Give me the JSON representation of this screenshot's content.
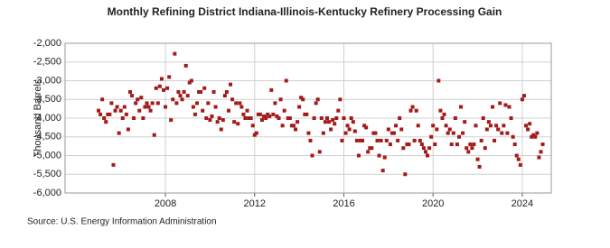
{
  "chart_data": {
    "type": "scatter",
    "title": "Monthly Refining District Indiana-Illinois-Kentucky Refinery Processing Gain",
    "y_label": "Thousand Barrels",
    "source": "Source: U.S. Energy Information Administration",
    "color": "#a31a1a",
    "grid": true,
    "xlim": [
      2003.5,
      2025.3
    ],
    "xticks": [
      2008,
      2012,
      2016,
      2020,
      2024
    ],
    "ylim": [
      -6000,
      -2000
    ],
    "yticks": [
      {
        "value": -6000,
        "label": "-6,000"
      },
      {
        "value": -5500,
        "label": "-5,500"
      },
      {
        "value": -5000,
        "label": "-5,000"
      },
      {
        "value": -4500,
        "label": "-4,500"
      },
      {
        "value": -4000,
        "label": "-4,000"
      },
      {
        "value": -3500,
        "label": "-3,500"
      },
      {
        "value": -3000,
        "label": "-3,000"
      },
      {
        "value": -2500,
        "label": "-2,500"
      },
      {
        "value": -2000,
        "label": "-2,000"
      }
    ],
    "x": [
      2005,
      2005.083,
      2005.167,
      2005.25,
      2005.333,
      2005.417,
      2005.5,
      2005.583,
      2005.667,
      2005.75,
      2005.833,
      2005.917,
      2006,
      2006.083,
      2006.167,
      2006.25,
      2006.333,
      2006.417,
      2006.5,
      2006.583,
      2006.667,
      2006.75,
      2006.833,
      2006.917,
      2007,
      2007.083,
      2007.167,
      2007.25,
      2007.333,
      2007.417,
      2007.5,
      2007.583,
      2007.667,
      2007.75,
      2007.833,
      2007.917,
      2008,
      2008.083,
      2008.167,
      2008.25,
      2008.333,
      2008.417,
      2008.5,
      2008.583,
      2008.667,
      2008.75,
      2008.833,
      2008.917,
      2009,
      2009.083,
      2009.167,
      2009.25,
      2009.333,
      2009.417,
      2009.5,
      2009.583,
      2009.667,
      2009.75,
      2009.833,
      2009.917,
      2010,
      2010.083,
      2010.167,
      2010.25,
      2010.333,
      2010.417,
      2010.5,
      2010.583,
      2010.667,
      2010.75,
      2010.833,
      2010.917,
      2011,
      2011.083,
      2011.167,
      2011.25,
      2011.333,
      2011.417,
      2011.5,
      2011.583,
      2011.667,
      2011.75,
      2011.833,
      2011.917,
      2012,
      2012.083,
      2012.167,
      2012.25,
      2012.333,
      2012.417,
      2012.5,
      2012.583,
      2012.667,
      2012.75,
      2012.833,
      2012.917,
      2013,
      2013.083,
      2013.167,
      2013.25,
      2013.333,
      2013.417,
      2013.5,
      2013.583,
      2013.667,
      2013.75,
      2013.833,
      2013.917,
      2014,
      2014.083,
      2014.167,
      2014.25,
      2014.333,
      2014.417,
      2014.5,
      2014.583,
      2014.667,
      2014.75,
      2014.833,
      2014.917,
      2015,
      2015.083,
      2015.167,
      2015.25,
      2015.333,
      2015.417,
      2015.5,
      2015.583,
      2015.667,
      2015.75,
      2015.833,
      2015.917,
      2016,
      2016.083,
      2016.167,
      2016.25,
      2016.333,
      2016.417,
      2016.5,
      2016.583,
      2016.667,
      2016.75,
      2016.833,
      2016.917,
      2017,
      2017.083,
      2017.167,
      2017.25,
      2017.333,
      2017.417,
      2017.5,
      2017.583,
      2017.667,
      2017.75,
      2017.833,
      2017.917,
      2018,
      2018.083,
      2018.167,
      2018.25,
      2018.333,
      2018.417,
      2018.5,
      2018.583,
      2018.667,
      2018.75,
      2018.833,
      2018.917,
      2019,
      2019.083,
      2019.167,
      2019.25,
      2019.333,
      2019.417,
      2019.5,
      2019.583,
      2019.667,
      2019.75,
      2019.833,
      2019.917,
      2020,
      2020.083,
      2020.167,
      2020.25,
      2020.333,
      2020.417,
      2020.5,
      2020.583,
      2020.667,
      2020.75,
      2020.833,
      2020.917,
      2021,
      2021.083,
      2021.167,
      2021.25,
      2021.333,
      2021.417,
      2021.5,
      2021.583,
      2021.667,
      2021.75,
      2021.833,
      2021.917,
      2022,
      2022.083,
      2022.167,
      2022.25,
      2022.333,
      2022.417,
      2022.5,
      2022.583,
      2022.667,
      2022.75,
      2022.833,
      2022.917,
      2023,
      2023.083,
      2023.167,
      2023.25,
      2023.333,
      2023.417,
      2023.5,
      2023.583,
      2023.667,
      2023.75,
      2023.833,
      2023.917,
      2024,
      2024.083,
      2024.167,
      2024.25,
      2024.333,
      2024.417,
      2024.5,
      2024.583,
      2024.667,
      2024.75,
      2024.833,
      2024.917
    ],
    "values": [
      -3800,
      -3900,
      -3500,
      -4000,
      -4100,
      -3900,
      -3900,
      -3600,
      -5250,
      -3800,
      -3700,
      -4400,
      -3800,
      -4000,
      -3700,
      -3900,
      -4300,
      -3300,
      -3400,
      -4000,
      -3600,
      -3500,
      -3800,
      -3450,
      -4000,
      -3700,
      -3600,
      -3700,
      -3800,
      -3600,
      -4450,
      -3200,
      -3600,
      -3150,
      -2950,
      -3250,
      -3700,
      -3200,
      -2900,
      -4050,
      -3500,
      -2280,
      -3600,
      -3300,
      -3400,
      -3500,
      -3300,
      -2600,
      -3400,
      -3050,
      -3000,
      -3700,
      -3900,
      -3600,
      -3300,
      -3300,
      -3800,
      -3200,
      -4000,
      -3600,
      -4050,
      -3950,
      -3300,
      -3700,
      -4100,
      -4000,
      -4300,
      -4050,
      -3400,
      -3300,
      -3800,
      -3100,
      -3500,
      -4100,
      -3600,
      -4150,
      -3600,
      -3700,
      -3900,
      -4000,
      -3800,
      -4000,
      -4000,
      -4200,
      -4450,
      -4400,
      -3900,
      -3900,
      -4050,
      -3950,
      -4000,
      -3900,
      -3950,
      -3250,
      -3900,
      -3600,
      -3950,
      -4000,
      -3500,
      -4200,
      -3800,
      -3000,
      -4000,
      -4000,
      -4200,
      -4200,
      -4300,
      -4100,
      -3700,
      -3450,
      -3500,
      -3900,
      -3900,
      -4400,
      -4600,
      -5000,
      -4000,
      -3600,
      -3500,
      -4900,
      -4000,
      -4400,
      -4100,
      -4000,
      -4100,
      -4300,
      -4050,
      -4150,
      -4000,
      -3800,
      -3500,
      -4600,
      -4000,
      -4400,
      -4200,
      -4300,
      -4000,
      -4100,
      -4350,
      -4600,
      -5000,
      -4600,
      -4600,
      -4200,
      -4250,
      -4900,
      -4800,
      -4800,
      -4400,
      -4400,
      -4600,
      -5000,
      -4600,
      -5400,
      -5050,
      -4600,
      -4300,
      -4700,
      -4400,
      -4400,
      -4200,
      -4600,
      -4000,
      -4300,
      -4800,
      -5500,
      -4700,
      -4700,
      -3800,
      -3700,
      -4600,
      -3800,
      -4200,
      -4600,
      -4700,
      -4800,
      -4900,
      -5000,
      -4800,
      -4500,
      -4200,
      -4700,
      -4300,
      -3000,
      -3800,
      -4000,
      -3900,
      -4200,
      -4400,
      -4300,
      -4700,
      -4400,
      -4000,
      -4700,
      -4500,
      -3700,
      -4400,
      -4100,
      -4800,
      -4900,
      -4700,
      -4800,
      -4700,
      -4200,
      -5100,
      -5300,
      -4600,
      -4000,
      -4800,
      -4300,
      -4100,
      -4200,
      -3700,
      -4600,
      -4200,
      -4300,
      -3600,
      -4400,
      -4200,
      -3650,
      -4400,
      -3700,
      -4000,
      -4500,
      -4700,
      -5000,
      -5100,
      -5250,
      -3500,
      -3400,
      -4200,
      -4300,
      -4150,
      -4500,
      -4450,
      -4500,
      -4400,
      -5050,
      -4900,
      -4700
    ]
  }
}
